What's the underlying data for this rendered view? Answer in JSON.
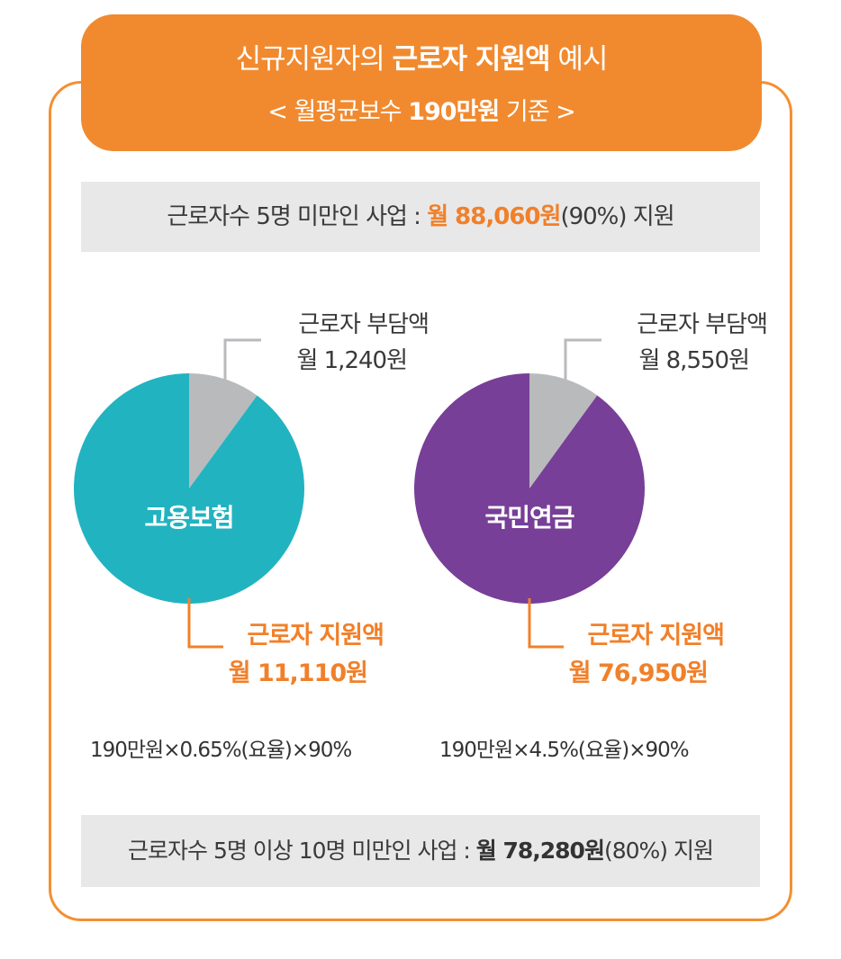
{
  "header": {
    "line1_pre": "신규지원자의 ",
    "line1_bold": "근로자 지원액",
    "line1_post": " 예시",
    "line2_pre": "< 월평균보수 ",
    "line2_bold": "190만원",
    "line2_post": " 기준 >"
  },
  "top_bar": {
    "pre": "근로자수 5명 미만인 사업 : ",
    "highlight": "월 88,060원",
    "post": "(90%) 지원"
  },
  "bottom_bar": {
    "pre": "근로자수 5명 이상 10명 미만인 사업 : ",
    "highlight": "월 78,280원",
    "post": "(80%) 지원"
  },
  "chart_data": [
    {
      "type": "pie",
      "title": "고용보험",
      "slices": [
        {
          "label_line1": "근로자 부담액",
          "label_line2": "월 1,240원",
          "value": 1240,
          "color": "#b9babc"
        },
        {
          "label_line1": "근로자 지원액",
          "label_line2": "월 11,110원",
          "value": 11110,
          "color": "#22b3c1"
        }
      ],
      "formula": "190만원×0.65%(요율)×90%"
    },
    {
      "type": "pie",
      "title": "국민연금",
      "slices": [
        {
          "label_line1": "근로자 부담액",
          "label_line2": "월 8,550원",
          "value": 8550,
          "color": "#b9babc"
        },
        {
          "label_line1": "근로자 지원액",
          "label_line2": "월 76,950원",
          "value": 76950,
          "color": "#773f97"
        }
      ],
      "formula": "190만원×4.5%(요율)×90%"
    }
  ],
  "colors": {
    "accent_orange": "#f18a2f",
    "bar_gray": "#e8e8e9",
    "leader_gray": "#b9babc"
  }
}
